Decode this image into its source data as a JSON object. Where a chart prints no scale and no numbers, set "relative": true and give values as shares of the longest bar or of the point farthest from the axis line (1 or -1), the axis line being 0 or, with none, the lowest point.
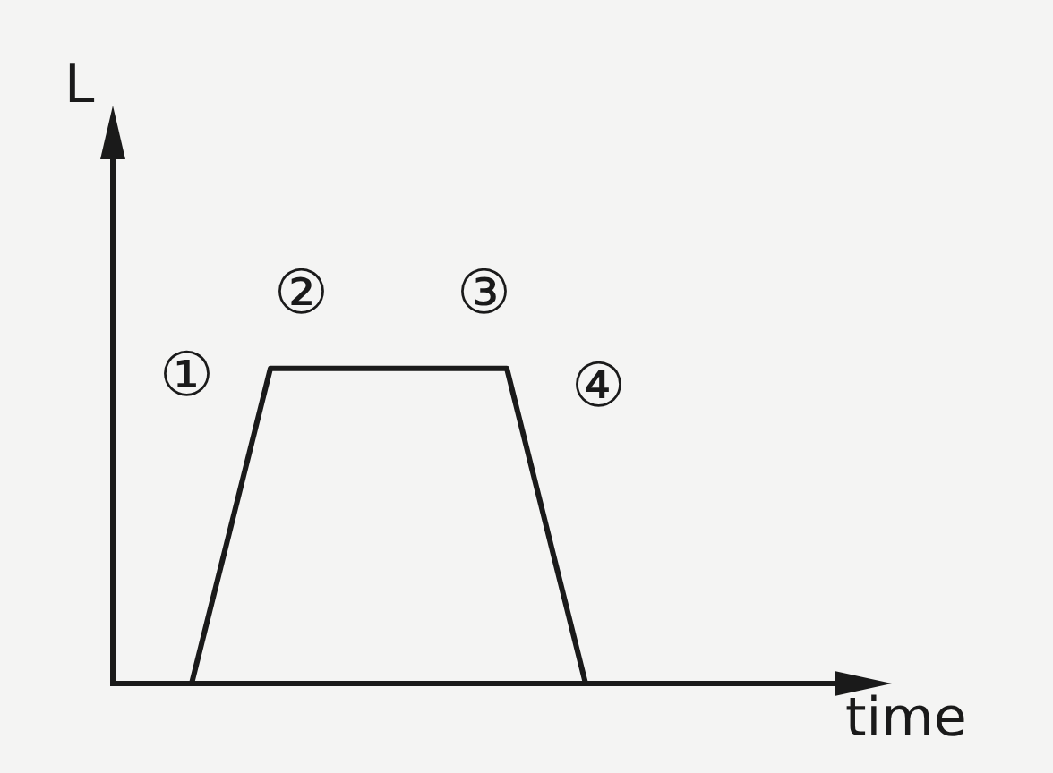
{
  "chart_data": {
    "type": "line",
    "relative": true,
    "xlabel": "time",
    "ylabel": "L",
    "categories": [
      null,
      null,
      null,
      null,
      null,
      null
    ],
    "series": [
      {
        "color": "#1a1a1a",
        "values": [
          0,
          1,
          1,
          1,
          1,
          0
        ]
      }
    ],
    "annotations": [
      "①",
      "②",
      "③",
      "④"
    ],
    "grid": false,
    "legend": false,
    "marker": "none",
    "line_style": "solid"
  }
}
